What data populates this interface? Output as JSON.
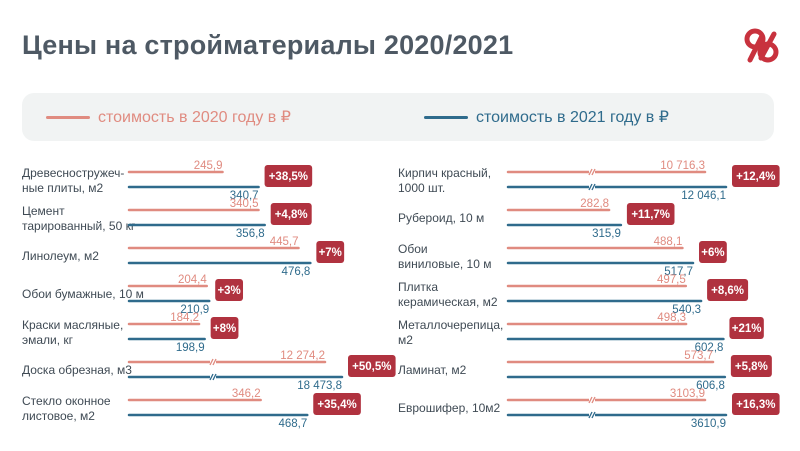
{
  "title": "Цены на стройматериалы 2020/2021",
  "colors": {
    "y2020": "#e08b80",
    "y2021": "#2f6b8c",
    "badge": "#b0323f",
    "logo": "#c8323e"
  },
  "legend": {
    "y2020": "стоимость в 2020 году в ₽",
    "y2021": "стоимость в 2021 году в ₽"
  },
  "chart_data": {
    "type": "bar",
    "orientation": "horizontal",
    "series_names": [
      "стоимость в 2020 году в ₽",
      "стоимость в 2021 году в ₽"
    ],
    "columns": [
      [
        {
          "label": [
            "Древесностружеч-",
            "ные плиты, м2"
          ],
          "v2020": 245.9,
          "v2021": 340.7,
          "t2020": "245,9",
          "t2021": "340,7",
          "change": "+38,5%",
          "broken": false
        },
        {
          "label": [
            "Цемент",
            "тарированный, 50 кг"
          ],
          "v2020": 340.5,
          "v2021": 356.8,
          "t2020": "340,5",
          "t2021": "356,8",
          "change": "+4,8%",
          "broken": false
        },
        {
          "label": [
            "Линолеум, м2"
          ],
          "v2020": 445.7,
          "v2021": 476.8,
          "t2020": "445,7",
          "t2021": "476,8",
          "change": "+7%",
          "broken": false
        },
        {
          "label": [
            "Обои бумажные, 10 м"
          ],
          "v2020": 204.4,
          "v2021": 210.9,
          "t2020": "204,4",
          "t2021": "210,9",
          "change": "+3%",
          "broken": false
        },
        {
          "label": [
            "Краски масляные,",
            "эмали, кг"
          ],
          "v2020": 184.2,
          "v2021": 198.9,
          "t2020": "184,2",
          "t2021": "198,9",
          "change": "+8%",
          "broken": false
        },
        {
          "label": [
            "Доска обрезная, м3"
          ],
          "v2020": 12274.2,
          "v2021": 18473.8,
          "t2020": "12 274,2",
          "t2021": "18 473,8",
          "change": "+50,5%",
          "broken": true
        },
        {
          "label": [
            "Стекло оконное",
            "листовое, м2"
          ],
          "v2020": 346.2,
          "v2021": 468.7,
          "t2020": "346,2",
          "t2021": "468,7",
          "change": "+35,4%",
          "broken": false
        }
      ],
      [
        {
          "label": [
            "Кирпич красный,",
            "1000 шт."
          ],
          "v2020": 10716.3,
          "v2021": 12046.1,
          "t2020": "10 716,3",
          "t2021": "12 046,1",
          "change": "+12,4%",
          "broken": true
        },
        {
          "label": [
            "Рубероид, 10 м"
          ],
          "v2020": 282.8,
          "v2021": 315.9,
          "t2020": "282,8",
          "t2021": "315,9",
          "change": "+11,7%",
          "broken": false
        },
        {
          "label": [
            "Обои",
            "виниловые, 10 м"
          ],
          "v2020": 488.1,
          "v2021": 517.7,
          "t2020": "488,1",
          "t2021": "517,7",
          "change": "+6%",
          "broken": false
        },
        {
          "label": [
            "Плитка",
            "керамическая, м2"
          ],
          "v2020": 497.5,
          "v2021": 540.3,
          "t2020": "497,5",
          "t2021": "540,3",
          "change": "+8,6%",
          "broken": false
        },
        {
          "label": [
            "Металлочерепица,",
            "м2"
          ],
          "v2020": 498.3,
          "v2021": 602.8,
          "t2020": "498,3",
          "t2021": "602,8",
          "change": "+21%",
          "broken": false
        },
        {
          "label": [
            "Ламинат, м2"
          ],
          "v2020": 573.7,
          "v2021": 606.8,
          "t2020": "573,7",
          "t2021": "606,8",
          "change": "+5,8%",
          "broken": false
        },
        {
          "label": [
            "Еврошифер, 10м2"
          ],
          "v2020": 3103.9,
          "v2021": 3610.9,
          "t2020": "3103,9",
          "t2021": "3610,9",
          "change": "+16,3%",
          "broken": true
        }
      ]
    ]
  }
}
